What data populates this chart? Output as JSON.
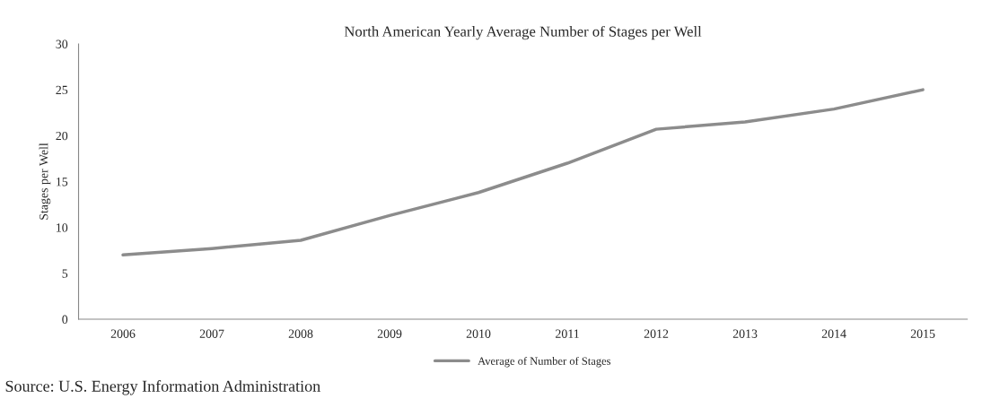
{
  "chart_data": {
    "type": "line",
    "title": "North American Yearly Average Number of Stages per Well",
    "ylabel": "Stages per Well",
    "categories": [
      "2006",
      "2007",
      "2008",
      "2009",
      "2010",
      "2011",
      "2012",
      "2013",
      "2014",
      "2015"
    ],
    "series": [
      {
        "name": "Average of Number of Stages",
        "color": "#8c8c8c",
        "values": [
          7.0,
          7.7,
          8.6,
          11.3,
          13.8,
          17.0,
          20.7,
          21.5,
          22.9,
          25.0
        ]
      }
    ],
    "ylim": [
      0,
      30
    ],
    "yticks": [
      0,
      5,
      10,
      15,
      20,
      25,
      30
    ],
    "grid": false,
    "legend": "bottom",
    "marker": "none",
    "line_style": "solid",
    "annotations": [
      "Source: U.S. Energy Information Administration"
    ]
  }
}
